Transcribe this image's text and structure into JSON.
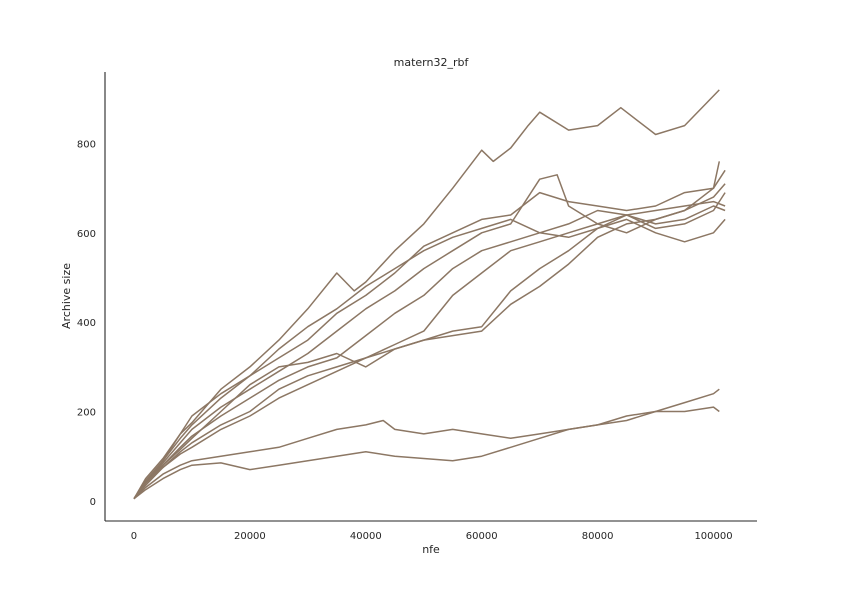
{
  "chart_data": {
    "type": "line",
    "title": "matern32_rbf",
    "xlabel": "nfe",
    "ylabel": "Archive size",
    "xlim": [
      -5000,
      107500
    ],
    "ylim": [
      -45,
      960
    ],
    "xticks": [
      0,
      20000,
      40000,
      60000,
      80000,
      100000
    ],
    "yticks": [
      0,
      200,
      400,
      600,
      800
    ],
    "grid": false,
    "color": "#8c7764",
    "series": [
      {
        "x": [
          0,
          2000,
          5000,
          8000,
          10000,
          15000,
          20000,
          25000,
          30000,
          35000,
          38000,
          40000,
          45000,
          50000,
          55000,
          60000,
          62000,
          65000,
          68000,
          70000,
          75000,
          80000,
          84000,
          90000,
          95000,
          101000
        ],
        "y": [
          5,
          40,
          90,
          150,
          175,
          250,
          300,
          360,
          430,
          510,
          470,
          490,
          560,
          620,
          700,
          785,
          760,
          790,
          840,
          870,
          830,
          840,
          880,
          820,
          840,
          920
        ]
      },
      {
        "x": [
          0,
          2000,
          5000,
          8000,
          10000,
          15000,
          20000,
          25000,
          30000,
          35000,
          40000,
          45000,
          50000,
          55000,
          60000,
          65000,
          70000,
          75000,
          80000,
          85000,
          90000,
          95000,
          100000,
          102000
        ],
        "y": [
          5,
          50,
          95,
          150,
          190,
          240,
          280,
          320,
          360,
          420,
          460,
          510,
          570,
          600,
          630,
          640,
          690,
          670,
          660,
          650,
          660,
          690,
          700,
          740
        ]
      },
      {
        "x": [
          0,
          2000,
          5000,
          8000,
          10000,
          15000,
          20000,
          25000,
          30000,
          35000,
          40000,
          45000,
          50000,
          55000,
          60000,
          65000,
          70000,
          75000,
          80000,
          85000,
          90000,
          95000,
          100000,
          102000
        ],
        "y": [
          5,
          45,
          90,
          140,
          170,
          230,
          280,
          340,
          390,
          430,
          480,
          520,
          560,
          590,
          610,
          630,
          600,
          590,
          610,
          640,
          650,
          660,
          670,
          660
        ]
      },
      {
        "x": [
          0,
          2000,
          5000,
          8000,
          10000,
          15000,
          20000,
          25000,
          30000,
          35000,
          40000,
          45000,
          50000,
          55000,
          60000,
          65000,
          70000,
          73000,
          75000,
          80000,
          85000,
          90000,
          95000,
          100000,
          101000
        ],
        "y": [
          5,
          40,
          85,
          130,
          160,
          210,
          250,
          290,
          330,
          380,
          430,
          470,
          520,
          560,
          600,
          620,
          720,
          730,
          660,
          620,
          600,
          630,
          650,
          700,
          760
        ]
      },
      {
        "x": [
          0,
          2000,
          5000,
          8000,
          10000,
          15000,
          20000,
          25000,
          30000,
          35000,
          40000,
          45000,
          50000,
          55000,
          60000,
          65000,
          70000,
          75000,
          80000,
          85000,
          90000,
          95000,
          100000,
          102000
        ],
        "y": [
          5,
          40,
          80,
          120,
          145,
          190,
          230,
          270,
          300,
          320,
          370,
          420,
          460,
          520,
          560,
          580,
          600,
          620,
          650,
          640,
          620,
          630,
          660,
          650
        ]
      },
      {
        "x": [
          0,
          2000,
          5000,
          8000,
          10000,
          15000,
          20000,
          25000,
          30000,
          35000,
          40000,
          45000,
          50000,
          55000,
          60000,
          65000,
          70000,
          75000,
          80000,
          85000,
          90000,
          95000,
          100000,
          102000
        ],
        "y": [
          5,
          35,
          75,
          110,
          130,
          170,
          200,
          250,
          280,
          300,
          320,
          350,
          380,
          460,
          510,
          560,
          580,
          600,
          620,
          640,
          610,
          620,
          650,
          690
        ]
      },
      {
        "x": [
          0,
          2000,
          5000,
          8000,
          10000,
          15000,
          20000,
          25000,
          30000,
          35000,
          40000,
          45000,
          50000,
          55000,
          60000,
          65000,
          70000,
          75000,
          80000,
          85000,
          90000,
          95000,
          100000,
          102000
        ],
        "y": [
          5,
          40,
          80,
          115,
          140,
          200,
          260,
          300,
          310,
          330,
          300,
          340,
          360,
          370,
          380,
          440,
          480,
          530,
          590,
          620,
          630,
          650,
          680,
          710
        ]
      },
      {
        "x": [
          0,
          2000,
          5000,
          8000,
          10000,
          15000,
          20000,
          25000,
          30000,
          35000,
          40000,
          45000,
          50000,
          55000,
          60000,
          65000,
          70000,
          75000,
          80000,
          85000,
          90000,
          95000,
          100000,
          102000
        ],
        "y": [
          5,
          40,
          75,
          105,
          120,
          160,
          190,
          230,
          260,
          290,
          320,
          340,
          360,
          380,
          390,
          470,
          520,
          560,
          610,
          630,
          600,
          580,
          600,
          630
        ]
      },
      {
        "x": [
          0,
          2000,
          5000,
          8000,
          10000,
          15000,
          20000,
          25000,
          30000,
          35000,
          40000,
          43000,
          45000,
          50000,
          55000,
          60000,
          65000,
          70000,
          75000,
          80000,
          85000,
          90000,
          95000,
          100000,
          101000
        ],
        "y": [
          5,
          30,
          60,
          80,
          90,
          100,
          110,
          120,
          140,
          160,
          170,
          180,
          160,
          150,
          160,
          150,
          140,
          150,
          160,
          170,
          180,
          200,
          200,
          210,
          200
        ]
      },
      {
        "x": [
          0,
          2000,
          5000,
          8000,
          10000,
          15000,
          20000,
          25000,
          30000,
          35000,
          40000,
          45000,
          50000,
          55000,
          60000,
          65000,
          70000,
          75000,
          80000,
          85000,
          90000,
          95000,
          100000,
          101000
        ],
        "y": [
          5,
          25,
          50,
          70,
          80,
          85,
          70,
          80,
          90,
          100,
          110,
          100,
          95,
          90,
          100,
          120,
          140,
          160,
          170,
          190,
          200,
          220,
          240,
          250
        ]
      }
    ]
  }
}
